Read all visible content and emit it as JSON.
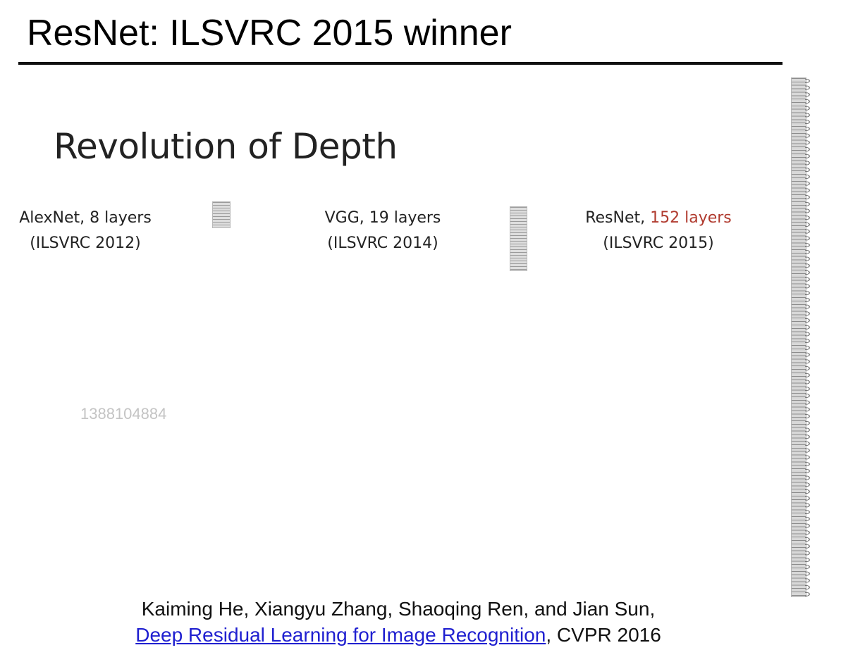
{
  "slide": {
    "title": "ResNet: ILSVRC 2015 winner",
    "subheading": "Revolution of Depth"
  },
  "networks": [
    {
      "name": "AlexNet, 8 layers",
      "competition": "(ILSVRC 2012)",
      "layers": 8
    },
    {
      "name": "VGG, 19 layers",
      "competition": "(ILSVRC 2014)",
      "layers": 19
    },
    {
      "name_prefix": "ResNet, ",
      "name_highlight": "152 layers",
      "competition": "(ILSVRC 2015)",
      "layers": 152
    }
  ],
  "watermark": "1388104884",
  "citation": {
    "authors": "Kaiming He, Xiangyu Zhang, Shaoqing Ren, and Jian Sun,",
    "paper_link": "Deep Residual Learning for Image Recognition",
    "venue": ", CVPR 2016"
  },
  "colors": {
    "highlight": "#b03a2e",
    "link": "#2020d0"
  }
}
